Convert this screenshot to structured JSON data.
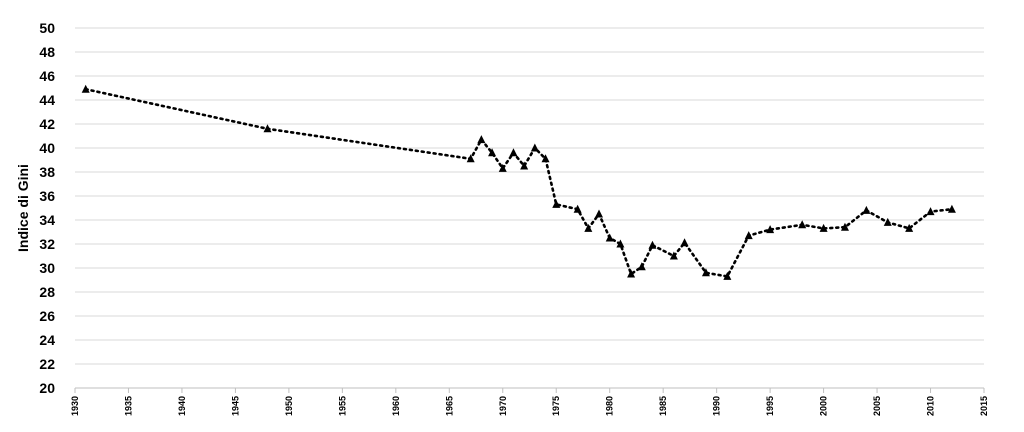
{
  "chart_data": {
    "type": "line",
    "xlabel": "",
    "ylabel": "Indice di Gini",
    "xlim": [
      1930,
      2015
    ],
    "ylim": [
      20,
      50
    ],
    "x_ticks": [
      "1930",
      "1935",
      "1940",
      "1945",
      "1950",
      "1955",
      "1960",
      "1965",
      "1970",
      "1975",
      "1980",
      "1985",
      "1990",
      "1995",
      "2000",
      "2005",
      "2010",
      "2015"
    ],
    "y_ticks": [
      "20",
      "22",
      "24",
      "26",
      "28",
      "30",
      "32",
      "34",
      "36",
      "38",
      "40",
      "42",
      "44",
      "46",
      "48",
      "50"
    ],
    "grid": true,
    "marker": "triangle",
    "line_style": "dotted",
    "color": "#000000",
    "series": [
      {
        "points": [
          [
            1931,
            44.9
          ],
          [
            1948,
            41.6
          ],
          [
            1967,
            39.1
          ],
          [
            1968,
            40.7
          ],
          [
            1969,
            39.6
          ],
          [
            1970,
            38.3
          ],
          [
            1971,
            39.6
          ],
          [
            1972,
            38.5
          ],
          [
            1973,
            40.0
          ],
          [
            1974,
            39.1
          ],
          [
            1975,
            35.3
          ],
          [
            1977,
            34.9
          ],
          [
            1978,
            33.3
          ],
          [
            1979,
            34.5
          ],
          [
            1980,
            32.5
          ],
          [
            1981,
            32.0
          ],
          [
            1982,
            29.5
          ],
          [
            1983,
            30.1
          ],
          [
            1984,
            31.9
          ],
          [
            1986,
            31.0
          ],
          [
            1987,
            32.1
          ],
          [
            1989,
            29.6
          ],
          [
            1991,
            29.3
          ],
          [
            1993,
            32.7
          ],
          [
            1995,
            33.2
          ],
          [
            1998,
            33.6
          ],
          [
            2000,
            33.3
          ],
          [
            2002,
            33.4
          ],
          [
            2004,
            34.8
          ],
          [
            2006,
            33.8
          ],
          [
            2008,
            33.3
          ],
          [
            2010,
            34.7
          ],
          [
            2012,
            34.9
          ]
        ]
      }
    ]
  }
}
